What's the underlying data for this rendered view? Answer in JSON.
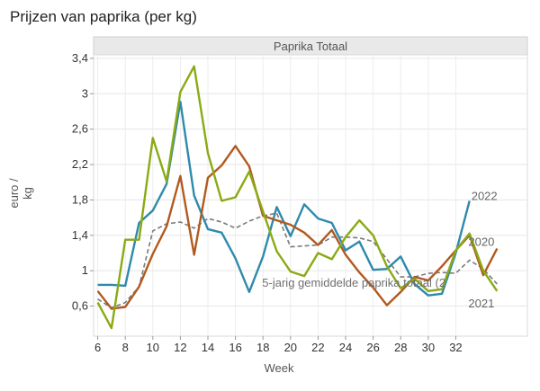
{
  "page_title": "Prijzen van paprika (per kg)",
  "chart_data": {
    "type": "line",
    "title": "Prijzen van paprika (per kg)",
    "facet_title": "Paprika Totaal",
    "xlabel": "Week",
    "ylabel": "euro / kg",
    "xlim": [
      5.7,
      37.2
    ],
    "ylim": [
      0.26,
      3.44
    ],
    "x_ticks": [
      6,
      8,
      10,
      12,
      14,
      16,
      18,
      20,
      22,
      24,
      26,
      28,
      30,
      32
    ],
    "y_ticks": [
      0.6,
      1,
      1.4,
      1.8,
      2.2,
      2.6,
      3,
      3.4
    ],
    "y_tick_labels": [
      "0,6",
      "1",
      "1,4",
      "1,8",
      "2,2",
      "2,6",
      "3",
      "3,4"
    ],
    "grid": true,
    "series": [
      {
        "name": "5-jarig gemiddelde paprika totaal (2",
        "color": "#7a7a7a",
        "dashed": true,
        "x": [
          6,
          7,
          8,
          9,
          10,
          11,
          12,
          13,
          14,
          15,
          16,
          17,
          18,
          19,
          20,
          21,
          22,
          23,
          24,
          25,
          26,
          27,
          28,
          29,
          30,
          31,
          32,
          33,
          34,
          35
        ],
        "values": [
          0.68,
          0.58,
          0.64,
          0.82,
          1.45,
          1.53,
          1.55,
          1.48,
          1.59,
          1.55,
          1.48,
          1.56,
          1.62,
          1.65,
          1.27,
          1.28,
          1.29,
          1.38,
          1.38,
          1.37,
          1.33,
          1.13,
          0.93,
          0.93,
          0.97,
          0.98,
          0.97,
          1.12,
          1.02,
          0.85
        ]
      },
      {
        "name": "2022",
        "color": "#2e8aac",
        "dashed": false,
        "x": [
          6,
          7,
          8,
          9,
          10,
          11,
          12,
          13,
          14,
          15,
          16,
          17,
          18,
          19,
          20,
          21,
          22,
          23,
          24,
          25,
          26,
          27,
          28,
          29,
          30,
          31,
          32,
          33
        ],
        "values": [
          0.84,
          0.84,
          0.83,
          1.54,
          1.68,
          1.98,
          2.91,
          1.85,
          1.47,
          1.43,
          1.14,
          0.76,
          1.16,
          1.72,
          1.39,
          1.75,
          1.59,
          1.54,
          1.23,
          1.33,
          1.01,
          1.02,
          1.16,
          0.85,
          0.72,
          0.74,
          1.2,
          1.79
        ]
      },
      {
        "name": "2020",
        "color": "#b15a1f",
        "dashed": false,
        "x": [
          6,
          7,
          8,
          9,
          10,
          11,
          12,
          13,
          14,
          15,
          16,
          17,
          18,
          19,
          20,
          21,
          22,
          23,
          24,
          25,
          26,
          27,
          28,
          29,
          30,
          31,
          32,
          33,
          34,
          35
        ],
        "values": [
          0.77,
          0.57,
          0.59,
          0.82,
          1.19,
          1.5,
          2.07,
          1.18,
          2.05,
          2.19,
          2.41,
          2.18,
          1.62,
          1.57,
          1.52,
          1.43,
          1.29,
          1.46,
          1.18,
          0.98,
          0.81,
          0.61,
          0.76,
          0.93,
          0.89,
          1.05,
          1.23,
          1.4,
          0.95,
          1.25
        ]
      },
      {
        "name": "2021",
        "color": "#8aaa14",
        "dashed": false,
        "x": [
          6,
          7,
          8,
          9,
          10,
          11,
          12,
          13,
          14,
          15,
          16,
          17,
          18,
          19,
          20,
          21,
          22,
          23,
          24,
          25,
          26,
          27,
          28,
          29,
          30,
          31,
          32,
          33,
          34,
          35
        ],
        "values": [
          0.64,
          0.35,
          1.35,
          1.35,
          2.5,
          2.01,
          3.02,
          3.31,
          2.33,
          1.79,
          1.83,
          2.12,
          1.67,
          1.22,
          0.99,
          0.94,
          1.2,
          1.13,
          1.38,
          1.57,
          1.4,
          1.05,
          0.8,
          0.91,
          0.77,
          0.79,
          1.23,
          1.42,
          1.0,
          0.77
        ]
      }
    ]
  }
}
